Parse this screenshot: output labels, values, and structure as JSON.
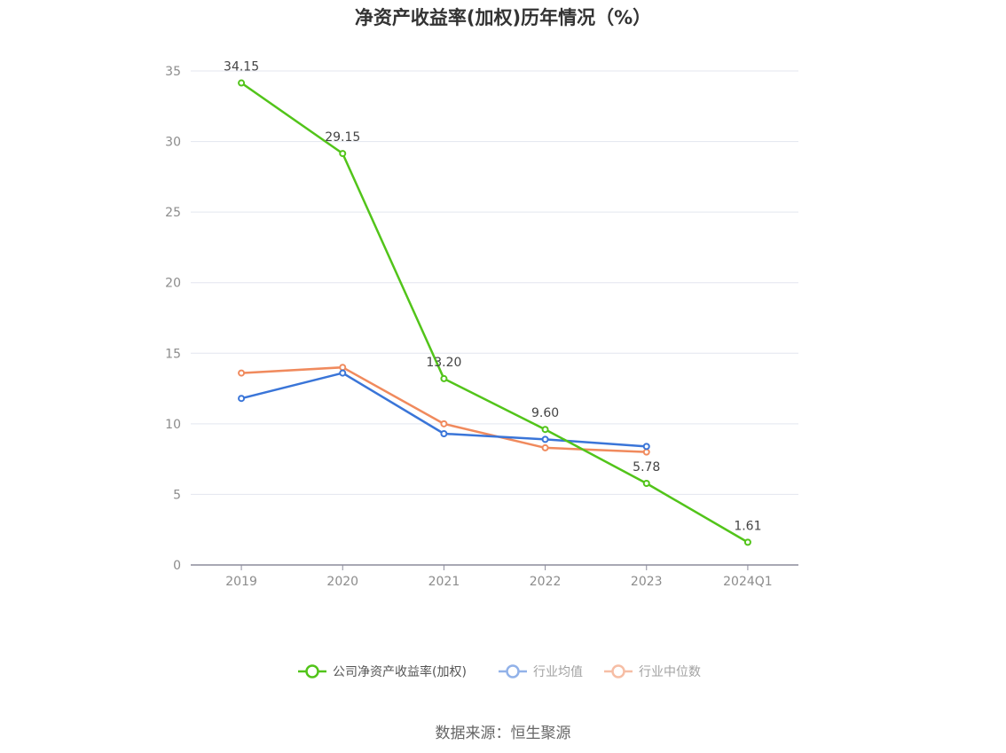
{
  "chart_data": {
    "type": "line",
    "title": "净资产收益率(加权)历年情况（%）",
    "categories": [
      "2019",
      "2020",
      "2021",
      "2022",
      "2023",
      "2024Q1"
    ],
    "ylim": [
      0,
      35
    ],
    "yticks": [
      0,
      5,
      10,
      15,
      20,
      25,
      30,
      35
    ],
    "grid": true,
    "legend_position": "bottom",
    "series": [
      {
        "name": "公司净资产收益率(加权)",
        "color": "#52c41a",
        "values": [
          34.15,
          29.15,
          13.2,
          9.6,
          5.78,
          1.61
        ],
        "labels": [
          "34.15",
          "29.15",
          "13.20",
          "9.60",
          "5.78",
          "1.61"
        ]
      },
      {
        "name": "行业均值",
        "color": "#3a75d8",
        "values": [
          11.8,
          13.6,
          9.3,
          8.9,
          8.4,
          null
        ]
      },
      {
        "name": "行业中位数",
        "color": "#f08a5d",
        "values": [
          13.6,
          14.0,
          10.0,
          8.3,
          8.0,
          null
        ]
      }
    ]
  },
  "source": "数据来源：恒生聚源"
}
